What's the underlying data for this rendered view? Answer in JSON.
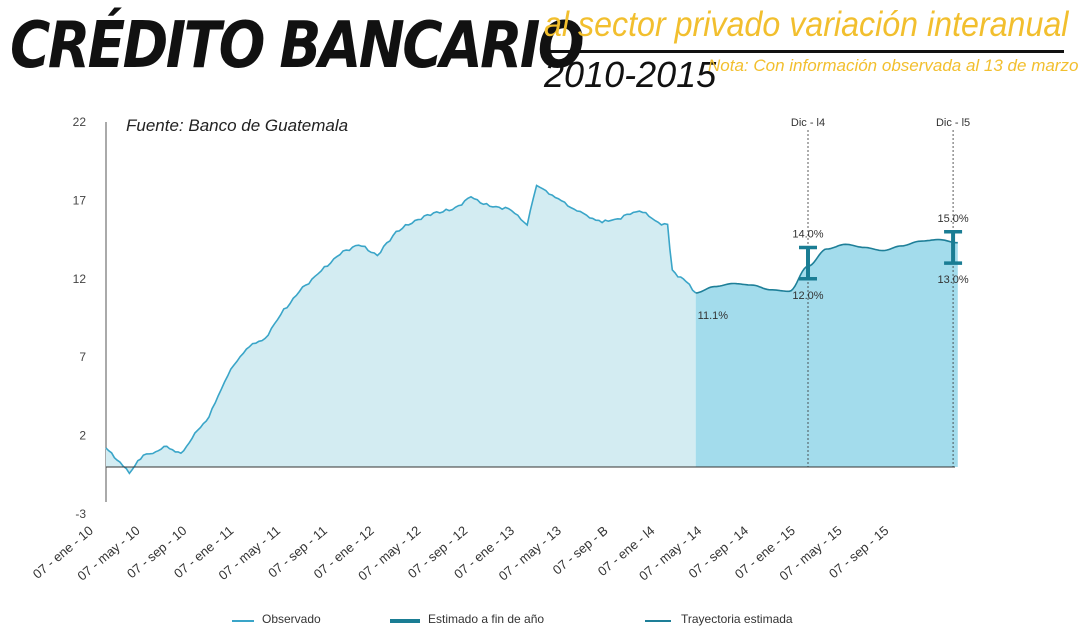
{
  "title": {
    "main": "CRÉDITO BANCARIO",
    "subtitle": "al sector privado variación interanual",
    "years": "2010-2015",
    "note": "Nota: Con información observada al 13 de marzo",
    "source": "Fuente: Banco de Guatemala"
  },
  "colors": {
    "observed_line": "#3aa5c8",
    "observed_fill": "#d3ecf2",
    "estimated_fill": "#a3dcec",
    "estimated_line": "#1e7f98",
    "range_bar": "#1a7d94"
  },
  "chart_data": {
    "type": "area",
    "title": "CRÉDITO BANCARIO al sector privado variación interanual",
    "ylim": [
      -3,
      22
    ],
    "yticks": [
      "22",
      "17",
      "12",
      "7",
      "2",
      "-3"
    ],
    "ytick_values": [
      22,
      17,
      12,
      7,
      2,
      -3
    ],
    "x_tick_labels": [
      "07 - ene - 10",
      "07 - may - 10",
      "07 - sep - 10",
      "07 - ene - 11",
      "07 - may - 11",
      "07 - sep - 11",
      "07 - ene - 12",
      "07 - may - 12",
      "07 - sep - 12",
      "07 - ene - 13",
      "07 - may - 13",
      "07 - sep - B",
      "07 - ene - l4",
      "07 - may - 14",
      "07 - sep - 14",
      "07 - ene - 15",
      "07 - may - 15",
      "07 - sep - 15"
    ],
    "grid": false,
    "legend_position": "bottom",
    "series": [
      {
        "name": "Observado",
        "x_index": [
          0,
          0.3,
          0.5,
          0.8,
          1.0,
          1.3,
          1.6,
          1.9,
          2.2,
          2.6,
          3.0,
          3.4,
          3.8,
          4.2,
          4.6,
          5.0,
          5.4,
          5.8,
          6.2,
          6.6,
          7.0,
          7.4,
          7.8,
          8.2,
          8.6,
          9.0,
          9.2,
          9.4,
          9.8,
          10.2,
          10.6,
          11.0,
          11.4,
          11.8,
          12.0,
          12.1,
          12.4,
          12.6
        ],
        "values": [
          1.2,
          0.3,
          -0.4,
          0.8,
          0.9,
          1.3,
          0.8,
          2.1,
          3.2,
          5.9,
          7.6,
          8.2,
          10.0,
          11.4,
          12.5,
          13.6,
          14.2,
          13.5,
          15.0,
          15.7,
          16.2,
          16.4,
          17.2,
          16.6,
          16.5,
          15.5,
          18.0,
          17.6,
          16.8,
          16.1,
          15.6,
          15.9,
          16.4,
          15.6,
          15.4,
          12.5,
          11.8,
          11.1
        ]
      },
      {
        "name": "Trayectoria estimada",
        "x_index": [
          12.6,
          13.0,
          13.4,
          13.8,
          14.2,
          14.6,
          15.0,
          15.4,
          15.8,
          16.2,
          16.6,
          17.0,
          17.4,
          17.8,
          18.2
        ],
        "values": [
          11.1,
          11.5,
          11.7,
          11.6,
          11.3,
          11.2,
          12.8,
          13.9,
          14.2,
          14.0,
          13.8,
          14.1,
          14.4,
          14.5,
          14.3
        ]
      }
    ],
    "estimates": [
      {
        "marker": "Dic - l4",
        "x_index": 15.0,
        "high": 14.0,
        "low": 12.0,
        "high_label": "14.0%",
        "low_label": "12.0%"
      },
      {
        "marker": "Dic - l5",
        "x_index": 18.1,
        "high": 15.0,
        "low": 13.0,
        "high_label": "15.0%",
        "low_label": "13.0%"
      }
    ],
    "annotations": [
      {
        "text": "11.1%",
        "x_index": 12.6,
        "value": 11.1
      }
    ]
  },
  "legend": [
    {
      "label": "Observado"
    },
    {
      "label": "Estimado a fin de año"
    },
    {
      "label": "Trayectoria estimada"
    }
  ]
}
